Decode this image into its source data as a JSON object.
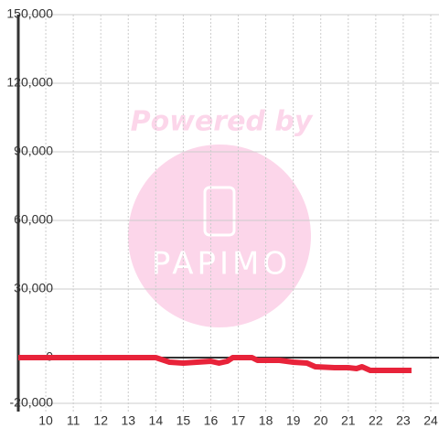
{
  "chart_data": {
    "type": "line",
    "watermark": {
      "top": "Powered by",
      "bottom": "PAPIMO"
    },
    "x": [
      9,
      14,
      14.5,
      15,
      15.5,
      16,
      16.3,
      16.6,
      16.8,
      17.5,
      17.7,
      18.5,
      19,
      19.5,
      19.8,
      20.5,
      21,
      21.3,
      21.5,
      21.8,
      23.3
    ],
    "series": [
      {
        "color": "#e8233a",
        "values": [
          0,
          0,
          -2000,
          -2400,
          -2000,
          -1600,
          -2400,
          -1600,
          0,
          0,
          -1200,
          -1200,
          -2000,
          -2400,
          -4000,
          -4400,
          -4400,
          -4800,
          -4000,
          -5600,
          -5600
        ]
      }
    ],
    "xlim": [
      9,
      24.3
    ],
    "xticks": [
      10,
      11,
      12,
      13,
      14,
      15,
      16,
      17,
      18,
      19,
      20,
      21,
      22,
      23,
      24
    ],
    "ylim": [
      -23600,
      150000
    ],
    "yticks": [
      {
        "value": -20000,
        "label": "-20,000"
      },
      0,
      {
        "value": 30000,
        "label": "30,000"
      },
      {
        "value": 60000,
        "label": "60,000"
      },
      {
        "value": 90000,
        "label": "90,000"
      },
      {
        "value": 120000,
        "label": "120,000"
      },
      {
        "value": 150000,
        "label": "150,000"
      }
    ],
    "grid": true
  }
}
